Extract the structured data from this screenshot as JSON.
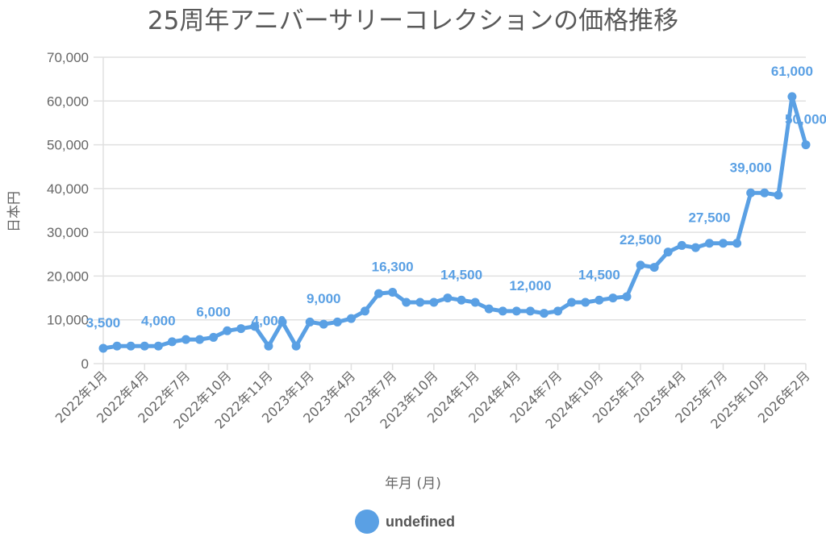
{
  "chart_data": {
    "type": "line",
    "title": "25周年アニバーサリーコレクションの価格推移",
    "xlabel": "年月 (月)",
    "ylabel": "日本円",
    "ylim": [
      0,
      70000
    ],
    "yticks": [
      0,
      10000,
      20000,
      30000,
      40000,
      50000,
      60000,
      70000
    ],
    "ytick_labels": [
      "0",
      "10,000",
      "20,000",
      "30,000",
      "40,000",
      "50,000",
      "60,000",
      "70,000"
    ],
    "grid": true,
    "color": "#5aa0e4",
    "x_tick_labels": [
      {
        "index": 0,
        "label": "2022年1月"
      },
      {
        "index": 3,
        "label": "2022年4月"
      },
      {
        "index": 6,
        "label": "2022年7月"
      },
      {
        "index": 9,
        "label": "2022年10月"
      },
      {
        "index": 12,
        "label": "2022年11月"
      },
      {
        "index": 15,
        "label": "2023年1月"
      },
      {
        "index": 18,
        "label": "2023年4月"
      },
      {
        "index": 21,
        "label": "2023年7月"
      },
      {
        "index": 24,
        "label": "2023年10月"
      },
      {
        "index": 27,
        "label": "2024年1月"
      },
      {
        "index": 30,
        "label": "2024年4月"
      },
      {
        "index": 33,
        "label": "2024年7月"
      },
      {
        "index": 36,
        "label": "2024年10月"
      },
      {
        "index": 39,
        "label": "2025年1月"
      },
      {
        "index": 42,
        "label": "2025年4月"
      },
      {
        "index": 45,
        "label": "2025年7月"
      },
      {
        "index": 48,
        "label": "2025年10月"
      },
      {
        "index": 51,
        "label": "2026年2月"
      }
    ],
    "series": [
      {
        "name": "undefined",
        "values": [
          3500,
          4000,
          4000,
          4000,
          4000,
          5000,
          5500,
          5500,
          6000,
          7500,
          8000,
          8500,
          4000,
          9500,
          4000,
          9500,
          9000,
          9500,
          10300,
          12000,
          16000,
          16300,
          14000,
          14000,
          14000,
          15000,
          14500,
          14000,
          12500,
          12000,
          12000,
          12000,
          11500,
          12000,
          14000,
          14000,
          14500,
          15000,
          15300,
          22500,
          22000,
          25500,
          27000,
          26500,
          27500,
          27500,
          27500,
          39000,
          39000,
          38500,
          61000,
          50000
        ]
      }
    ],
    "data_labels": [
      {
        "index": 0,
        "text": "3,500"
      },
      {
        "index": 4,
        "text": "4,000"
      },
      {
        "index": 8,
        "text": "6,000"
      },
      {
        "index": 12,
        "text": "4,000"
      },
      {
        "index": 16,
        "text": "9,000"
      },
      {
        "index": 21,
        "text": "16,300"
      },
      {
        "index": 26,
        "text": "14,500"
      },
      {
        "index": 31,
        "text": "12,000"
      },
      {
        "index": 36,
        "text": "14,500"
      },
      {
        "index": 39,
        "text": "22,500"
      },
      {
        "index": 44,
        "text": "27,500"
      },
      {
        "index": 47,
        "text": "39,000"
      },
      {
        "index": 50,
        "text": "61,000"
      },
      {
        "index": 51,
        "text": "50,000"
      }
    ],
    "legend": {
      "label": "undefined",
      "placement": "bottom"
    }
  }
}
